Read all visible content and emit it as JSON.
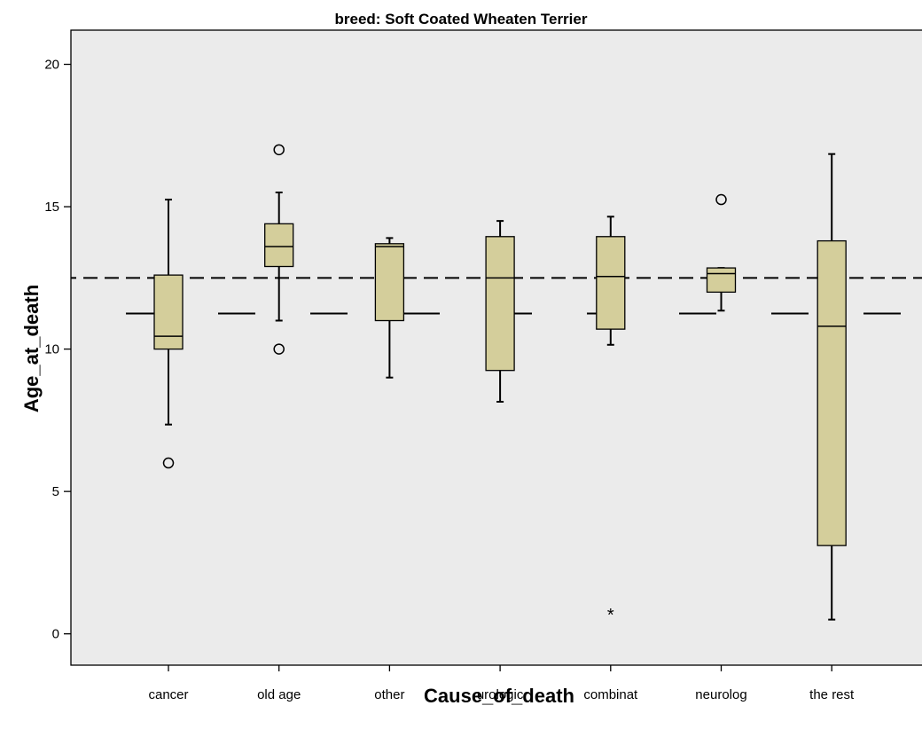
{
  "chart_data": {
    "type": "boxplot",
    "title": "breed: Soft Coated Wheaten Terrier",
    "xlabel": "Cause_of_death",
    "ylabel": "Age_at_death",
    "ylim": [
      -1.1,
      21.2
    ],
    "yticks": [
      0,
      5,
      10,
      15,
      20
    ],
    "grid": false,
    "background_color": "#ebebeb",
    "box_fill_color": "#d4ce9b",
    "categories": [
      "cancer",
      "old age",
      "other",
      "urologic",
      "combinat",
      "neurolog",
      "the rest"
    ],
    "boxes": [
      {
        "category": "cancer",
        "whisker_low": 7.35,
        "q1": 10.0,
        "median": 10.45,
        "q3": 12.6,
        "whisker_high": 15.25,
        "outliers": [
          6.0
        ],
        "extremes": []
      },
      {
        "category": "old age",
        "whisker_low": 11.0,
        "q1": 12.9,
        "median": 13.6,
        "q3": 14.4,
        "whisker_high": 15.5,
        "outliers": [
          17.0,
          10.0
        ],
        "extremes": []
      },
      {
        "category": "other",
        "whisker_low": 9.0,
        "q1": 11.0,
        "median": 13.6,
        "q3": 13.7,
        "whisker_high": 13.9,
        "outliers": [],
        "extremes": []
      },
      {
        "category": "urologic",
        "whisker_low": 8.15,
        "q1": 9.25,
        "median": 12.5,
        "q3": 13.95,
        "whisker_high": 14.5,
        "outliers": [],
        "extremes": []
      },
      {
        "category": "combinat",
        "whisker_low": 10.15,
        "q1": 10.7,
        "median": 12.55,
        "q3": 13.95,
        "whisker_high": 14.65,
        "outliers": [],
        "extremes": [
          0.7
        ]
      },
      {
        "category": "neurolog",
        "whisker_low": 11.35,
        "q1": 12.0,
        "median": 12.65,
        "q3": 12.85,
        "whisker_high": 12.85,
        "outliers": [
          15.25
        ],
        "extremes": []
      },
      {
        "category": "the rest",
        "whisker_low": 0.5,
        "q1": 3.1,
        "median": 10.8,
        "q3": 13.8,
        "whisker_high": 16.85,
        "outliers": [],
        "extremes": []
      }
    ],
    "reference_lines": [
      {
        "value": 12.5,
        "style": "short-dash"
      },
      {
        "value": 11.25,
        "style": "long-dash"
      }
    ]
  }
}
